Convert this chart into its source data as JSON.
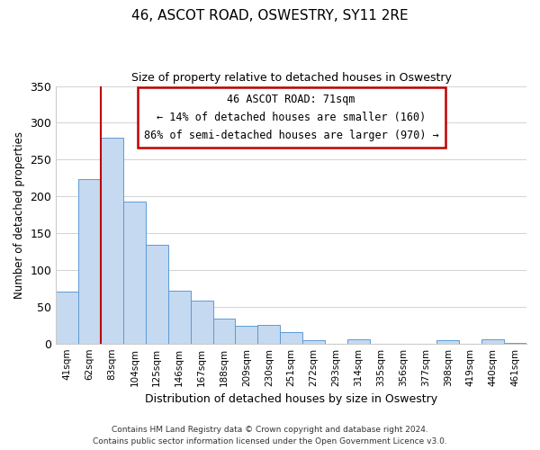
{
  "title": "46, ASCOT ROAD, OSWESTRY, SY11 2RE",
  "subtitle": "Size of property relative to detached houses in Oswestry",
  "xlabel": "Distribution of detached houses by size in Oswestry",
  "ylabel": "Number of detached properties",
  "bar_labels": [
    "41sqm",
    "62sqm",
    "83sqm",
    "104sqm",
    "125sqm",
    "146sqm",
    "167sqm",
    "188sqm",
    "209sqm",
    "230sqm",
    "251sqm",
    "272sqm",
    "293sqm",
    "314sqm",
    "335sqm",
    "356sqm",
    "377sqm",
    "398sqm",
    "419sqm",
    "440sqm",
    "461sqm"
  ],
  "bar_values": [
    70,
    224,
    280,
    193,
    134,
    72,
    58,
    34,
    24,
    25,
    15,
    5,
    0,
    6,
    0,
    0,
    0,
    5,
    0,
    6,
    1
  ],
  "bar_color": "#c5d9f0",
  "bar_edge_color": "#5b9bd5",
  "ylim": [
    0,
    350
  ],
  "yticks": [
    0,
    50,
    100,
    150,
    200,
    250,
    300,
    350
  ],
  "property_line_color": "#c00000",
  "annotation_title": "46 ASCOT ROAD: 71sqm",
  "annotation_line1": "← 14% of detached houses are smaller (160)",
  "annotation_line2": "86% of semi-detached houses are larger (970) →",
  "annotation_box_color": "#ffffff",
  "annotation_box_edge": "#c00000",
  "footer_line1": "Contains HM Land Registry data © Crown copyright and database right 2024.",
  "footer_line2": "Contains public sector information licensed under the Open Government Licence v3.0.",
  "background_color": "#ffffff",
  "grid_color": "#cccccc"
}
